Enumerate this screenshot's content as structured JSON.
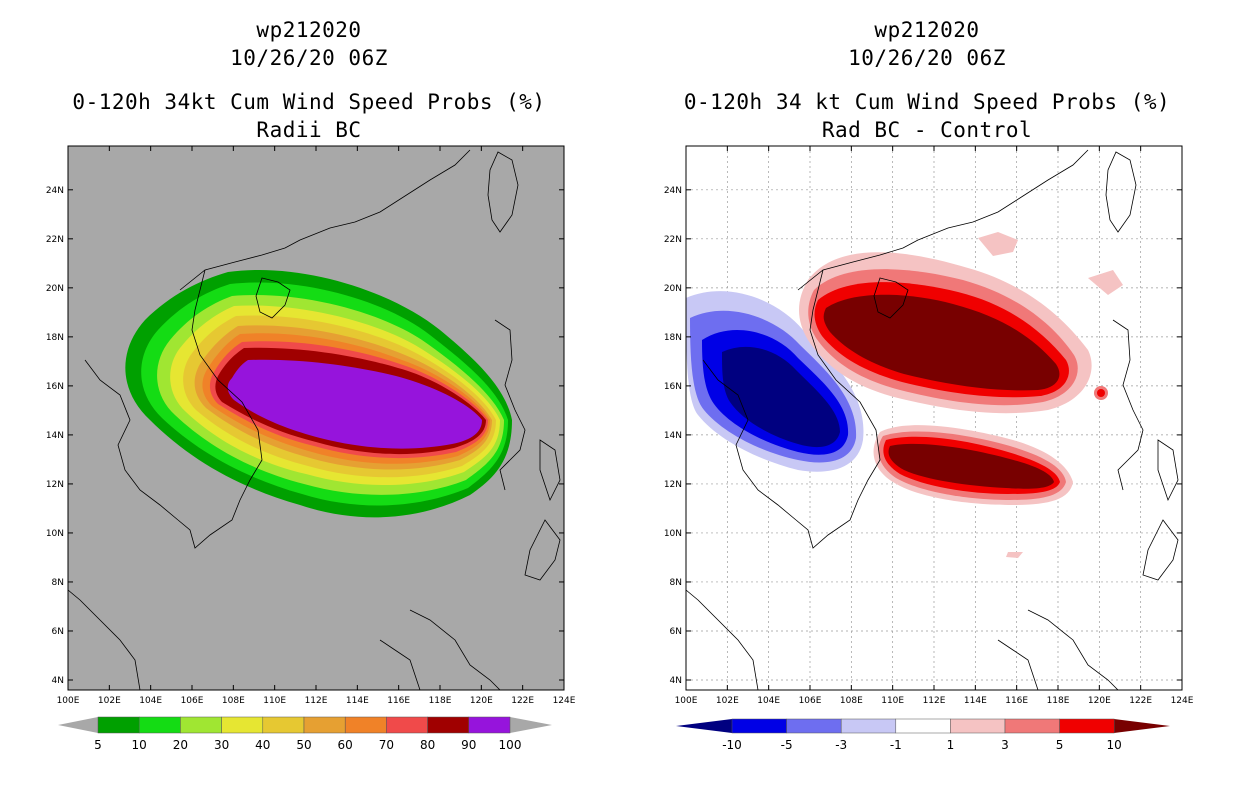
{
  "colors": {
    "land_gray": "#a8a8a8",
    "coast": "#000000",
    "prob_scale": [
      "#00a000",
      "#14dc14",
      "#a0e632",
      "#e6e632",
      "#e6c832",
      "#e6a032",
      "#f08228",
      "#f04a4a",
      "#a00000",
      "#9614dc"
    ],
    "diff_scale": [
      "#000080",
      "#0000e6",
      "#6e6ef0",
      "#c8c8f5",
      "#ffffff",
      "#f5c3c3",
      "#f07878",
      "#f00000",
      "#780000"
    ]
  },
  "left_panel": {
    "title_line1": "wp212020",
    "title_line2": "10/26/20 06Z",
    "title_line3": "0-120h 34kt Cum Wind Speed Probs (%)",
    "title_line4": "Radii BC",
    "colorbar_labels": [
      "5",
      "10",
      "20",
      "30",
      "40",
      "50",
      "60",
      "70",
      "80",
      "90",
      "100"
    ]
  },
  "right_panel": {
    "title_line1": "wp212020",
    "title_line2": "10/26/20 06Z",
    "title_line3": "0-120h 34 kt Cum Wind Speed Probs (%)",
    "title_line4": "Rad BC - Control",
    "colorbar_labels": [
      "-10",
      "-5",
      "-3",
      "-1",
      "1",
      "3",
      "5",
      "10"
    ]
  },
  "axes": {
    "lon_labels": [
      "100E",
      "102E",
      "104E",
      "106E",
      "108E",
      "110E",
      "112E",
      "114E",
      "116E",
      "118E",
      "120E",
      "122E",
      "124E"
    ],
    "lat_labels": [
      "4N",
      "6N",
      "8N",
      "10N",
      "12N",
      "14N",
      "16N",
      "18N",
      "20N",
      "22N",
      "24N"
    ]
  }
}
